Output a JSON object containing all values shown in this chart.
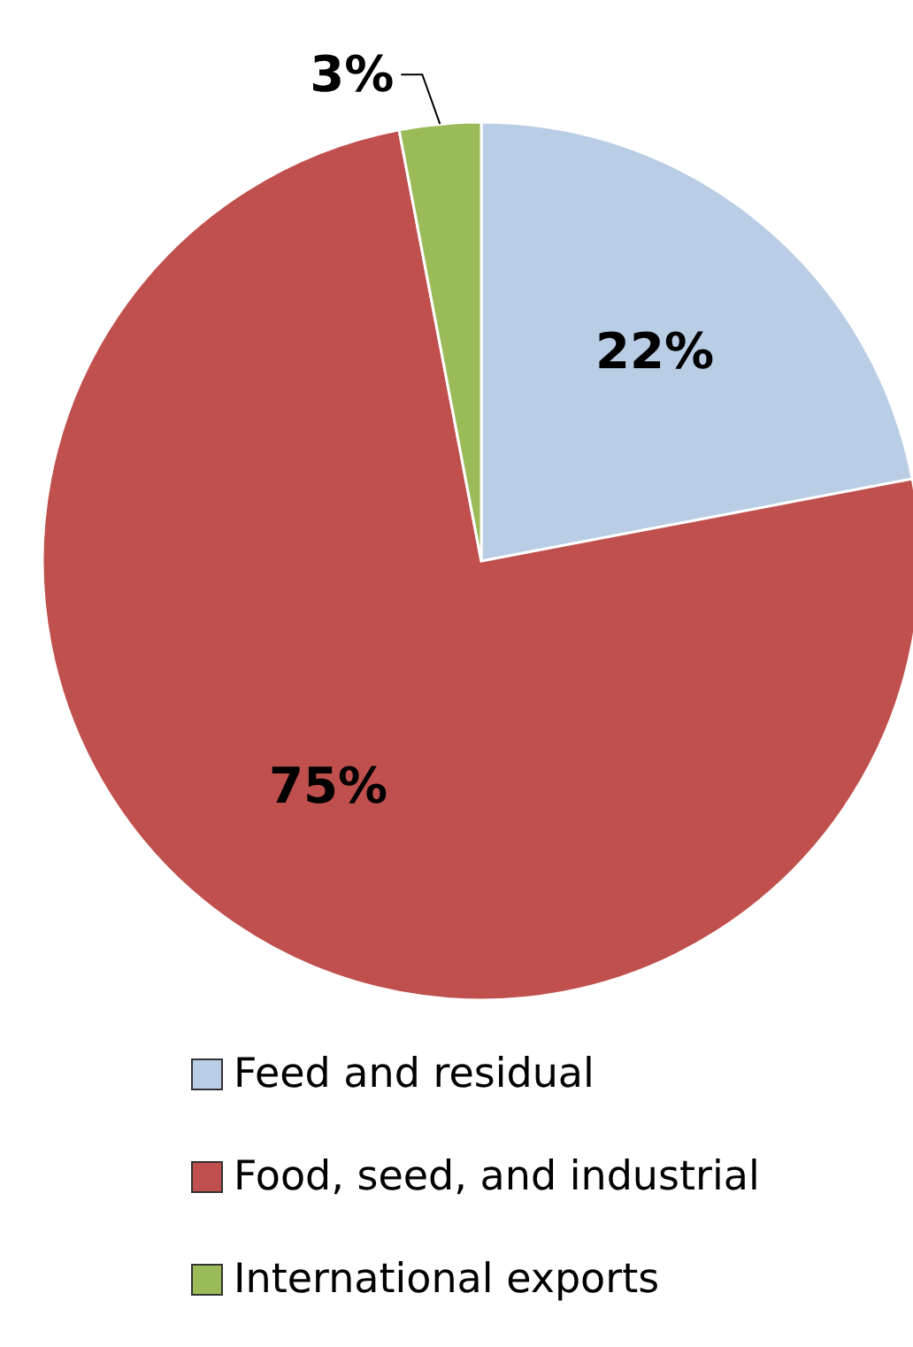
{
  "chart_data": {
    "type": "pie",
    "categories": [
      "Feed and residual",
      "Food, seed, and industrial",
      "International exports"
    ],
    "values": [
      22,
      75,
      3
    ],
    "colors": [
      "#b9cde5",
      "#c0504d",
      "#9bbb59"
    ],
    "value_labels": [
      "22%",
      "75%",
      "3%"
    ],
    "legend": "bottom"
  }
}
